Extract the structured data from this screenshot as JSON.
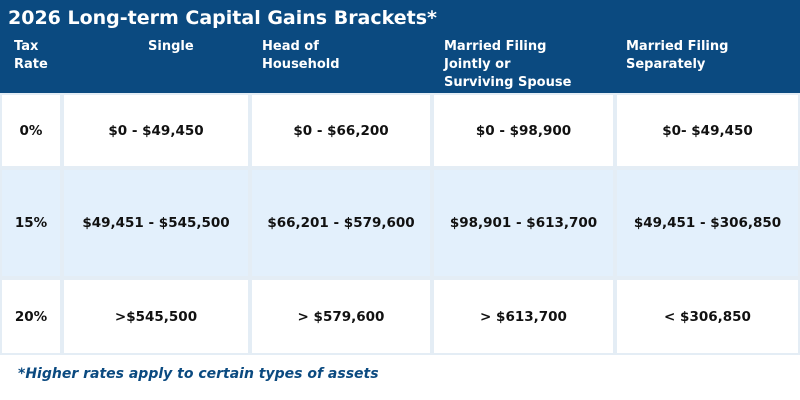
{
  "title": "2026 Long-term Capital Gains Brackets*",
  "table": {
    "header": [
      "Tax Rate",
      "Single",
      "Head of Household",
      "Married Filing Jointly or Surviving Spouse",
      "Married Filing Separately"
    ],
    "rows": [
      [
        "0%",
        "$0 - $49,450",
        "$0 - $66,200",
        "$0 - $98,900",
        "$0- $49,450"
      ],
      [
        "15%",
        "$49,451 - $545,500",
        "$66,201 - $579,600",
        "$98,901 - $613,700",
        "$49,451 - $306,850"
      ],
      [
        "20%",
        ">$545,500",
        "> $579,600",
        "> $613,700",
        "< $306,850"
      ]
    ]
  },
  "footnote": "*Higher rates apply to certain types of assets"
}
